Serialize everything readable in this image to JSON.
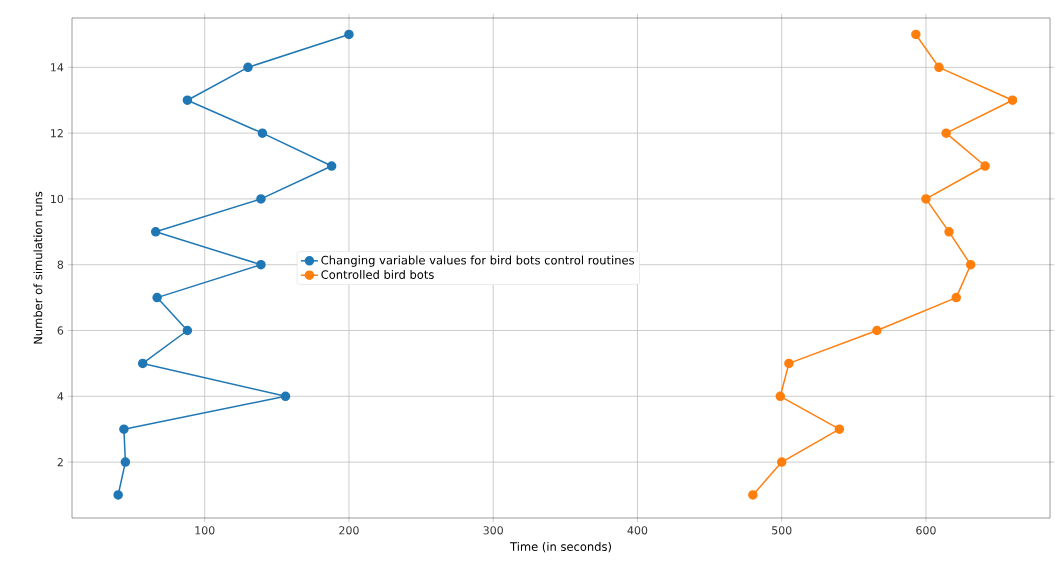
{
  "chart_data": {
    "type": "line",
    "xlabel": "Time (in seconds)",
    "ylabel": "Number of simulation runs",
    "xlim": [
      8,
      686
    ],
    "ylim": [
      0.3,
      15.5
    ],
    "xticks": [
      100,
      200,
      300,
      400,
      500,
      600
    ],
    "yticks": [
      2,
      4,
      6,
      8,
      10,
      12,
      14
    ],
    "grid": true,
    "legend": "center",
    "marker": "circle",
    "line_style": "solid",
    "series": [
      {
        "name": "Changing variable values for bird bots control routines",
        "color": "#1f77b4",
        "x": [
          40,
          45,
          44,
          156,
          57,
          88,
          67,
          139,
          66,
          139,
          188,
          140,
          88,
          130,
          200
        ],
        "values": [
          1,
          2,
          3,
          4,
          5,
          6,
          7,
          8,
          9,
          10,
          11,
          12,
          13,
          14,
          15
        ]
      },
      {
        "name": "Controlled bird bots",
        "color": "#ff7f0e",
        "x": [
          480,
          500,
          540,
          499,
          505,
          566,
          621,
          631,
          616,
          600,
          641,
          614,
          660,
          609,
          593
        ],
        "values": [
          1,
          2,
          3,
          4,
          5,
          6,
          7,
          8,
          9,
          10,
          11,
          12,
          13,
          14,
          15
        ]
      }
    ]
  }
}
